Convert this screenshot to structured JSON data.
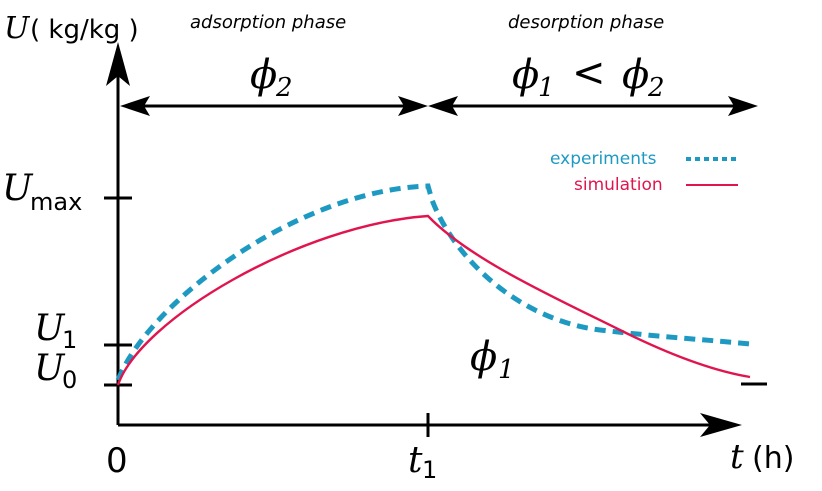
{
  "axes": {
    "y_symbol": "U",
    "y_unit": "( kg/kg )",
    "x_symbol": "t",
    "x_unit": "(h)",
    "origin": "0",
    "t1_base": "t",
    "t1_sub": "1"
  },
  "phases": {
    "adsorption": {
      "title": "adsorption phase",
      "label_base": "ϕ",
      "label_sub": "2"
    },
    "desorption": {
      "title": "desorption phase",
      "label_a": "ϕ",
      "label_a_sub": "1",
      "relation": "<",
      "label_b": "ϕ",
      "label_b_sub": "2"
    }
  },
  "y_ticks": {
    "umax_base": "U",
    "umax_sub": "max",
    "u1_base": "U",
    "u1_sub": "1",
    "u0_base": "U",
    "u0_sub": "0"
  },
  "annotation": {
    "phi1_base": "ϕ",
    "phi1_sub": "1"
  },
  "legend": {
    "experiments": "experiments",
    "simulation": "simulation"
  },
  "colors": {
    "experiments": "#1e9ac2",
    "simulation": "#e0154e",
    "axis": "#000000"
  },
  "chart_data": {
    "type": "line",
    "xlabel": "t (h)",
    "ylabel": "U ( kg/kg )",
    "series": [
      {
        "name": "experiments",
        "style": "dashed",
        "color": "#1e9ac2"
      },
      {
        "name": "simulation",
        "style": "solid",
        "color": "#e0154e"
      }
    ]
  }
}
